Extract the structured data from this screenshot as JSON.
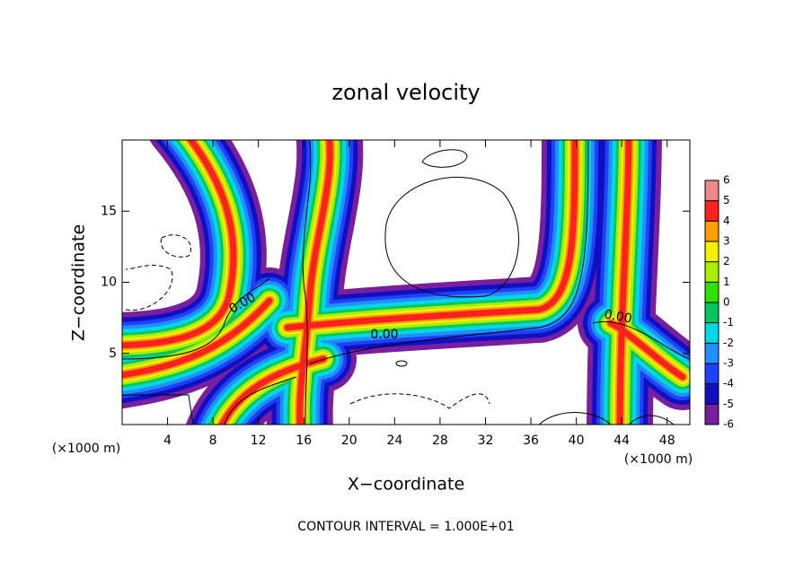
{
  "chart_data": {
    "type": "contour",
    "title": "zonal velocity",
    "x_label": "X−coordinate",
    "y_label": "Z−coordinate",
    "x_unit": "(×1000 m)",
    "x_unit_right": "(×1000 m)",
    "xlim": [
      0,
      50
    ],
    "xticks": [
      4,
      8,
      12,
      16,
      20,
      24,
      28,
      32,
      36,
      40,
      44,
      48
    ],
    "ylim": [
      0,
      20
    ],
    "yticks": [
      5,
      10,
      15
    ],
    "contour_labels": [
      "0.00",
      "0.00",
      "0.00"
    ],
    "footer": "CONTOUR INTERVAL = 1.000E+01",
    "colorbar": {
      "levels": [
        -6,
        -5,
        -4,
        -3,
        -2,
        -1,
        0,
        1,
        2,
        3,
        4,
        5,
        6
      ],
      "colors": [
        "#7a1ea0",
        "#1010c0",
        "#2040ff",
        "#2090ff",
        "#00d8e8",
        "#00c860",
        "#30e000",
        "#a8f000",
        "#f0f000",
        "#ffa000",
        "#ff2020",
        "#f08888"
      ]
    }
  }
}
